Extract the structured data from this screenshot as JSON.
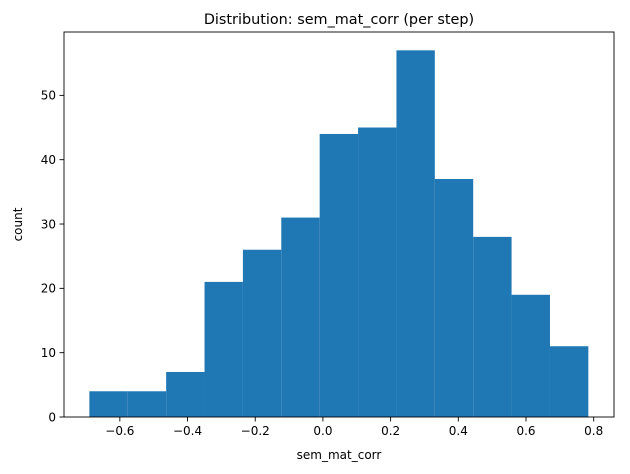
{
  "chart_data": {
    "type": "bar",
    "title": "Distribution: sem_mat_corr (per step)",
    "xlabel": "sem_mat_corr",
    "ylabel": "count",
    "bin_edges": [
      -0.69,
      -0.5766,
      -0.4632,
      -0.3498,
      -0.2364,
      -0.123,
      -0.0096,
      0.1038,
      0.2172,
      0.3306,
      0.444,
      0.5574,
      0.6708,
      0.7842
    ],
    "values": [
      4,
      4,
      7,
      21,
      26,
      31,
      44,
      45,
      57,
      37,
      28,
      19,
      11
    ],
    "xlim": [
      -0.765,
      0.86
    ],
    "ylim": [
      0,
      59.85
    ],
    "xticks": [
      -0.6,
      -0.4,
      -0.2,
      0.0,
      0.2,
      0.4,
      0.6,
      0.8
    ],
    "xtick_labels": [
      "−0.6",
      "−0.4",
      "−0.2",
      "0.0",
      "0.2",
      "0.4",
      "0.6",
      "0.8"
    ],
    "yticks": [
      0,
      10,
      20,
      30,
      40,
      50
    ],
    "ytick_labels": [
      "0",
      "10",
      "20",
      "30",
      "40",
      "50"
    ],
    "bar_color": "#1f77b4",
    "grid": false,
    "legend": "none"
  }
}
